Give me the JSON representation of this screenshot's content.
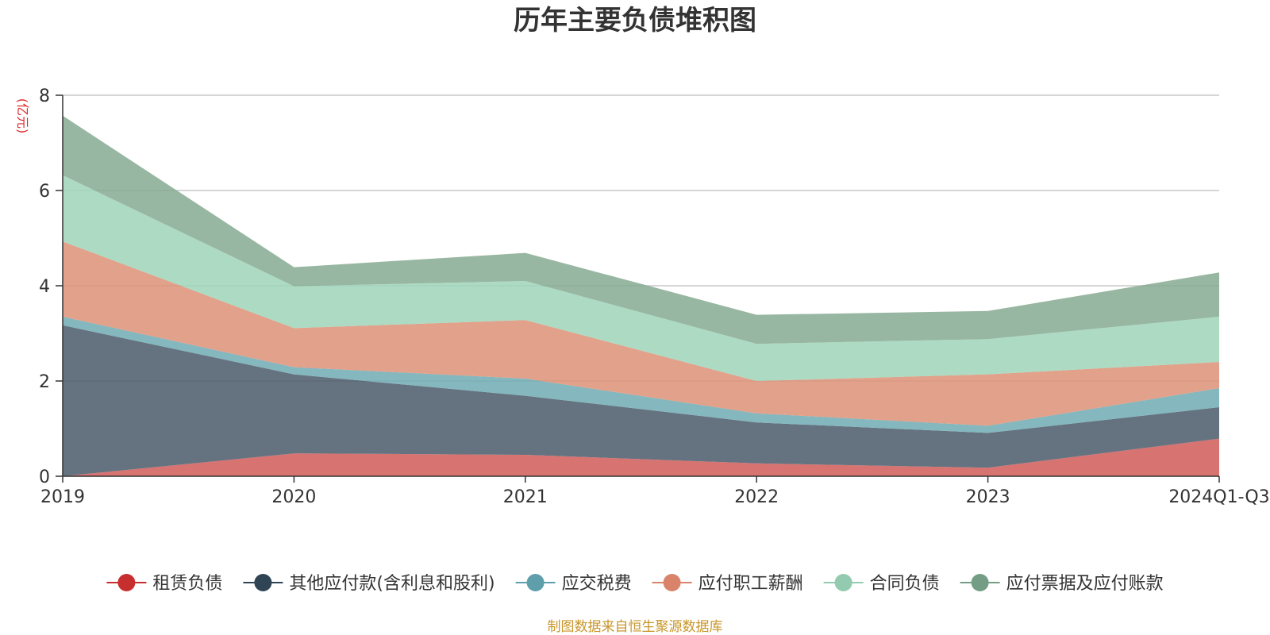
{
  "chart_data": {
    "type": "area",
    "stacked": true,
    "title": "历年主要负债堆积图",
    "ylabel": "(亿元)",
    "categories": [
      "2019",
      "2020",
      "2021",
      "2022",
      "2023",
      "2024Q1-Q3"
    ],
    "ylim": [
      0,
      8
    ],
    "yticks": [
      "0",
      "2",
      "4",
      "6",
      "8"
    ],
    "grid": true,
    "legend_position": "bottom",
    "series": [
      {
        "name": "租赁负债",
        "values": [
          0.0,
          0.48,
          0.45,
          0.27,
          0.18,
          0.79
        ],
        "color": "#d05a57",
        "marker": "#c72f2f"
      },
      {
        "name": "其他应付款(含利息和股利)",
        "values": [
          3.17,
          1.66,
          1.24,
          0.86,
          0.73,
          0.66
        ],
        "color": "#4a5a6b",
        "marker": "#2f4556"
      },
      {
        "name": "应交税费",
        "values": [
          0.18,
          0.15,
          0.36,
          0.19,
          0.15,
          0.4
        ],
        "color": "#6faab3",
        "marker": "#5e9fab"
      },
      {
        "name": "应付职工薪酬",
        "values": [
          1.58,
          0.82,
          1.23,
          0.68,
          1.08,
          0.55
        ],
        "color": "#dc9175",
        "marker": "#d9846a"
      },
      {
        "name": "合同负债",
        "values": [
          1.39,
          0.88,
          0.82,
          0.78,
          0.74,
          0.95
        ],
        "color": "#9fd4b8",
        "marker": "#93cbb0"
      },
      {
        "name": "应付票据及应付账款",
        "values": [
          1.25,
          0.4,
          0.59,
          0.61,
          0.59,
          0.93
        ],
        "color": "#86aa92",
        "marker": "#739e85"
      }
    ]
  },
  "source": "制图数据来自恒生聚源数据库"
}
